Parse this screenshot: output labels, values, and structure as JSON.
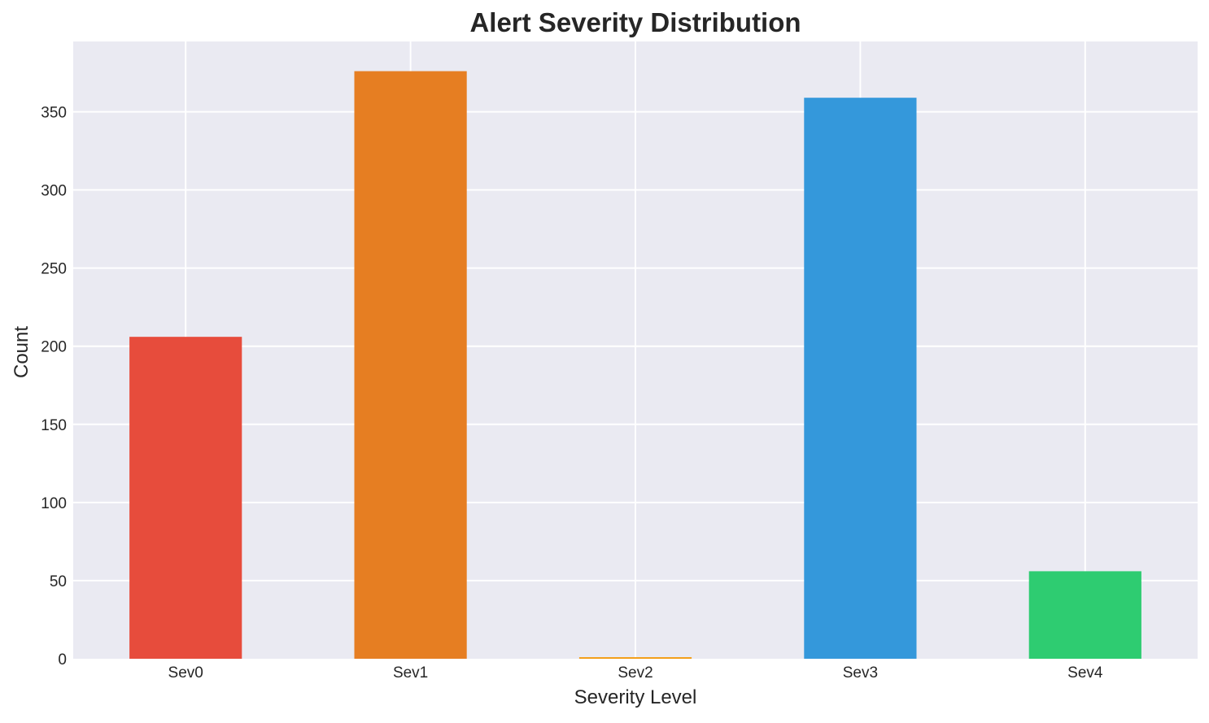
{
  "chart_data": {
    "type": "bar",
    "title": "Alert Severity Distribution",
    "xlabel": "Severity Level",
    "ylabel": "Count",
    "categories": [
      "Sev0",
      "Sev1",
      "Sev2",
      "Sev3",
      "Sev4"
    ],
    "values": [
      206,
      376,
      1,
      359,
      56
    ],
    "colors": [
      "#e74c3c",
      "#e67e22",
      "#f39c12",
      "#3498db",
      "#2ecc71"
    ],
    "ylim": [
      0,
      395
    ],
    "yticks": [
      0,
      50,
      100,
      150,
      200,
      250,
      300,
      350
    ],
    "grid": true,
    "background": "#eaeaf2",
    "legend": "none"
  }
}
